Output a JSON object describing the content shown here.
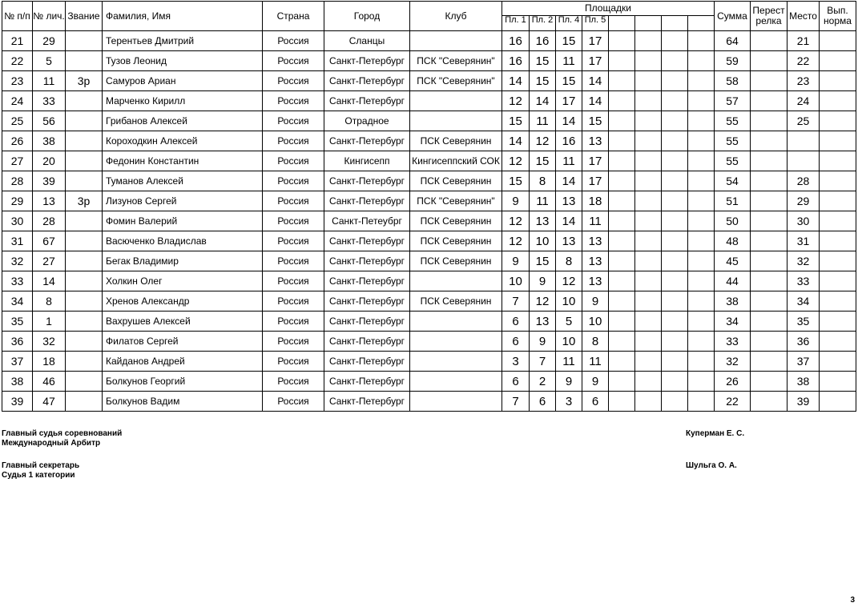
{
  "header": {
    "n": "№ п/п",
    "lic": "№ лич.",
    "rank": "Звание",
    "name": "Фамилия, Имя",
    "country": "Страна",
    "city": "Город",
    "club": "Клуб",
    "sites": "Площадки",
    "site_cols": [
      "Пл. 1",
      "Пл. 2",
      "Пл. 4",
      "Пл. 5",
      "",
      "",
      "",
      ""
    ],
    "sum": "Сумма",
    "pereyst": "Перест релка",
    "place": "Место",
    "norm": "Вып. норма"
  },
  "rows": [
    {
      "n": "21",
      "lic": "29",
      "rank": "",
      "name": "Терентьев Дмитрий",
      "country": "Россия",
      "city": "Сланцы",
      "club": "",
      "scores": [
        "16",
        "16",
        "15",
        "17"
      ],
      "sum": "64",
      "place": "21"
    },
    {
      "n": "22",
      "lic": "5",
      "rank": "",
      "name": "Тузов Леонид",
      "country": "Россия",
      "city": "Санкт-Петербург",
      "club": "ПСК \"Северянин\"",
      "scores": [
        "16",
        "15",
        "11",
        "17"
      ],
      "sum": "59",
      "place": "22"
    },
    {
      "n": "23",
      "lic": "11",
      "rank": "3р",
      "name": "Самуров Ариан",
      "country": "Россия",
      "city": "Санкт-Петербург",
      "club": "ПСК \"Северянин\"",
      "scores": [
        "14",
        "15",
        "15",
        "14"
      ],
      "sum": "58",
      "place": "23"
    },
    {
      "n": "24",
      "lic": "33",
      "rank": "",
      "name": "Марченко Кирилл",
      "country": "Россия",
      "city": "Санкт-Петербург",
      "club": "",
      "scores": [
        "12",
        "14",
        "17",
        "14"
      ],
      "sum": "57",
      "place": "24"
    },
    {
      "n": "25",
      "lic": "56",
      "rank": "",
      "name": "Грибанов Алексей",
      "country": "Россия",
      "city": "Отрадное",
      "club": "",
      "scores": [
        "15",
        "11",
        "14",
        "15"
      ],
      "sum": "55",
      "place": "25"
    },
    {
      "n": "26",
      "lic": "38",
      "rank": "",
      "name": "Короходкин Алексей",
      "country": "Россия",
      "city": "Санкт-Петербург",
      "club": "ПСК Северянин",
      "scores": [
        "14",
        "12",
        "16",
        "13"
      ],
      "sum": "55",
      "place": ""
    },
    {
      "n": "27",
      "lic": "20",
      "rank": "",
      "name": "Федонин Константин",
      "country": "Россия",
      "city": "Кингисепп",
      "club": "Кингисеппский СОК",
      "scores": [
        "12",
        "15",
        "11",
        "17"
      ],
      "sum": "55",
      "place": ""
    },
    {
      "n": "28",
      "lic": "39",
      "rank": "",
      "name": "Туманов Алексей",
      "country": "Россия",
      "city": "Санкт-Петербург",
      "club": "ПСК Северянин",
      "scores": [
        "15",
        "8",
        "14",
        "17"
      ],
      "sum": "54",
      "place": "28"
    },
    {
      "n": "29",
      "lic": "13",
      "rank": "3р",
      "name": "Лизунов Сергей",
      "country": "Россия",
      "city": "Санкт-Петербург",
      "club": "ПСК \"Северянин\"",
      "scores": [
        "9",
        "11",
        "13",
        "18"
      ],
      "sum": "51",
      "place": "29"
    },
    {
      "n": "30",
      "lic": "28",
      "rank": "",
      "name": "Фомин Валерий",
      "country": "Россия",
      "city": "Санкт-Петеубрг",
      "club": "ПСК Северянин",
      "scores": [
        "12",
        "13",
        "14",
        "11"
      ],
      "sum": "50",
      "place": "30"
    },
    {
      "n": "31",
      "lic": "67",
      "rank": "",
      "name": "Васюченко Владислав",
      "country": "Россия",
      "city": "Санкт-Петербург",
      "club": "ПСК Северянин",
      "scores": [
        "12",
        "10",
        "13",
        "13"
      ],
      "sum": "48",
      "place": "31"
    },
    {
      "n": "32",
      "lic": "27",
      "rank": "",
      "name": "Бегак Владимир",
      "country": "Россия",
      "city": "Санкт-Петербург",
      "club": "ПСК Северянин",
      "scores": [
        "9",
        "15",
        "8",
        "13"
      ],
      "sum": "45",
      "place": "32"
    },
    {
      "n": "33",
      "lic": "14",
      "rank": "",
      "name": "Холкин Олег",
      "country": "Россия",
      "city": "Санкт-Петербург",
      "club": "",
      "scores": [
        "10",
        "9",
        "12",
        "13"
      ],
      "sum": "44",
      "place": "33"
    },
    {
      "n": "34",
      "lic": "8",
      "rank": "",
      "name": "Хренов Александр",
      "country": "Россия",
      "city": "Санкт-Петербург",
      "club": "ПСК Северянин",
      "scores": [
        "7",
        "12",
        "10",
        "9"
      ],
      "sum": "38",
      "place": "34"
    },
    {
      "n": "35",
      "lic": "1",
      "rank": "",
      "name": "Вахрушев Алексей",
      "country": "Россия",
      "city": "Санкт-Петербург",
      "club": "",
      "scores": [
        "6",
        "13",
        "5",
        "10"
      ],
      "sum": "34",
      "place": "35"
    },
    {
      "n": "36",
      "lic": "32",
      "rank": "",
      "name": "Филатов Сергей",
      "country": "Россия",
      "city": "Санкт-Петербург",
      "club": "",
      "scores": [
        "6",
        "9",
        "10",
        "8"
      ],
      "sum": "33",
      "place": "36"
    },
    {
      "n": "37",
      "lic": "18",
      "rank": "",
      "name": "Кайданов Андрей",
      "country": "Россия",
      "city": "Санкт-Петербург",
      "club": "",
      "scores": [
        "3",
        "7",
        "11",
        "11"
      ],
      "sum": "32",
      "place": "37"
    },
    {
      "n": "38",
      "lic": "46",
      "rank": "",
      "name": "Болкунов Георгий",
      "country": "Россия",
      "city": "Санкт-Петербург",
      "club": "",
      "scores": [
        "6",
        "2",
        "9",
        "9"
      ],
      "sum": "26",
      "place": "38"
    },
    {
      "n": "39",
      "lic": "47",
      "rank": "",
      "name": "Болкунов Вадим",
      "country": "Россия",
      "city": "Санкт-Петербург",
      "club": "",
      "scores": [
        "7",
        "6",
        "3",
        "6"
      ],
      "sum": "22",
      "place": "39"
    }
  ],
  "footer": {
    "judge_title": "Главный судья соревнований",
    "judge_category": "Международный Арбитр",
    "judge_name": "Куперман Е. С.",
    "secretary_title": "Главный секретарь",
    "secretary_category": "Судья 1 категории",
    "secretary_name": "Шульга О. А."
  },
  "page_number": "3"
}
